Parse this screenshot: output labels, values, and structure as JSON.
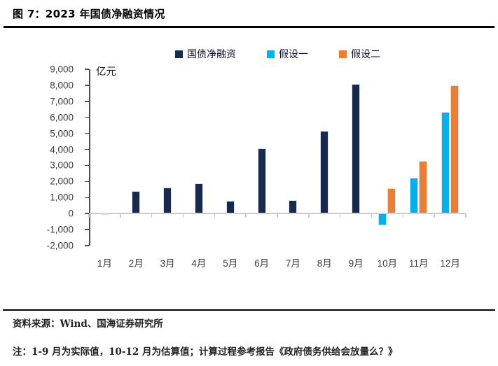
{
  "figure": {
    "title": "图 7：2023 年国债净融资情况"
  },
  "footer": {
    "source": "资料来源：Wind、国海证券研究所",
    "note": "注：1-9 月为实际值，10-12 月为估算值；计算过程参考报告《政府债务供给会放量么？》"
  },
  "chart_data": {
    "type": "bar",
    "title": "2023 年国债净融资情况",
    "unit_label": "亿元",
    "categories": [
      "1月",
      "2月",
      "3月",
      "4月",
      "5月",
      "6月",
      "7月",
      "8月",
      "9月",
      "10月",
      "11月",
      "12月"
    ],
    "series": [
      {
        "name": "国债净融资",
        "color": "#16294F",
        "values": [
          -35,
          1390,
          1610,
          1870,
          790,
          4060,
          830,
          5150,
          8080,
          null,
          null,
          null
        ]
      },
      {
        "name": "假设一",
        "color": "#00B0F0",
        "values": [
          null,
          null,
          null,
          null,
          null,
          null,
          null,
          null,
          null,
          -750,
          2250,
          6340
        ]
      },
      {
        "name": "假设二",
        "color": "#ED7D31",
        "values": [
          null,
          null,
          null,
          null,
          null,
          null,
          null,
          null,
          null,
          1600,
          3270,
          8010
        ]
      }
    ],
    "ylim": [
      -2000,
      9000
    ],
    "ytick_step": 1000,
    "ytick_labels": [
      "9,000",
      "8,000",
      "7,000",
      "6,000",
      "5,000",
      "4,000",
      "3,000",
      "2,000",
      "1,000",
      "0",
      "-1,000",
      "-2,000"
    ],
    "grid": false,
    "legend_position": "top",
    "axis_color": "#4d4d4d",
    "zero_line_color": "#c9c9c9",
    "bar_border_color": "#dadfe9"
  }
}
